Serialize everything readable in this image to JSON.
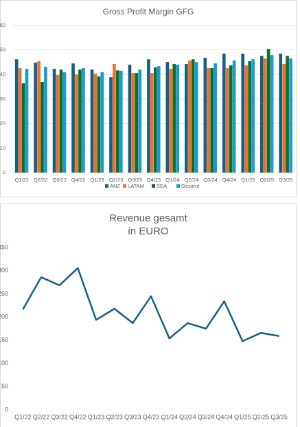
{
  "chart_data": [
    {
      "type": "bar",
      "title": "Gross Profit Margin GFG",
      "categories": [
        "Q1/22",
        "Q2/22",
        "Q3/22",
        "Q4/22",
        "Q1/23",
        "Q2/23",
        "Q3/23",
        "Q4/23",
        "Q1/24",
        "Q2/24",
        "Q3/24",
        "Q4/24",
        "Q1/25",
        "Q2/25",
        "Q3/25"
      ],
      "series": [
        {
          "name": "ANZ",
          "color": "#156082",
          "values": [
            46.2,
            44.8,
            42.3,
            44.5,
            42,
            38.9,
            44,
            46.2,
            45.1,
            44.3,
            46.8,
            48.5,
            48.5,
            47.6,
            48.5
          ]
        },
        {
          "name": "LATAM",
          "color": "#e97132",
          "values": [
            42.6,
            45.4,
            39.8,
            40,
            40.3,
            44.3,
            40.6,
            40.6,
            42.3,
            45.7,
            42.6,
            42.6,
            43.7,
            46.5,
            44.3
          ]
        },
        {
          "name": "SEA",
          "color": "#196b24",
          "values": [
            36.4,
            37,
            42,
            42,
            39.2,
            41.7,
            40.6,
            42.9,
            44.3,
            46.2,
            42.6,
            43.7,
            45.4,
            50.4,
            47.6
          ]
        },
        {
          "name": "Gesamt",
          "color": "#0f9ed5",
          "values": [
            42.3,
            43.1,
            40.9,
            42.6,
            40.9,
            41.5,
            42,
            43.4,
            44,
            45.1,
            44.5,
            45.7,
            46.2,
            47.9,
            46.5
          ]
        }
      ],
      "ylim": [
        0,
        60
      ],
      "yticks": [
        0,
        10,
        20,
        30,
        40,
        50,
        60
      ],
      "grid": true,
      "legend": "bottom"
    },
    {
      "type": "line",
      "title": [
        "Revenue gesamt",
        "in EURO"
      ],
      "categories": [
        "Q1/22",
        "Q2/22",
        "Q3/22",
        "Q4/22",
        "Q1/23",
        "Q2/23",
        "Q3/23",
        "Q4/23",
        "Q1/24",
        "Q2/24",
        "Q3/24",
        "Q4/24",
        "Q1/25",
        "Q2/25",
        "Q3/25"
      ],
      "values": [
        216.6,
        286,
        268.5,
        305.6,
        194,
        218,
        187,
        245,
        154,
        187,
        175,
        234,
        148,
        166,
        159
      ],
      "color": "#156082",
      "ylim": [
        0,
        350
      ],
      "yticks": [
        0,
        50,
        100,
        150,
        200,
        250,
        300,
        350
      ],
      "grid": false
    }
  ]
}
